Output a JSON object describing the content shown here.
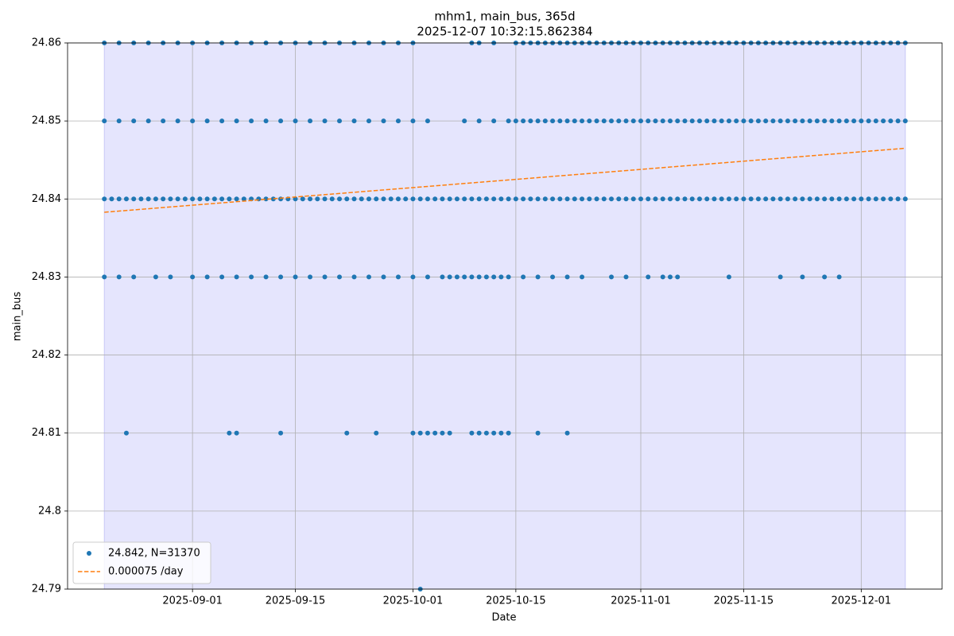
{
  "chart_data": {
    "type": "scatter",
    "title": "mhm1, main_bus, 365d",
    "subtitle": "2025-12-07 10:32:15.862384",
    "x_label": "Date",
    "y_label": "main_bus",
    "xlim": [
      "2025-08-15",
      "2025-12-12"
    ],
    "xticks": [
      "2025-09-01",
      "2025-09-15",
      "2025-10-01",
      "2025-10-15",
      "2025-11-01",
      "2025-11-15",
      "2025-12-01"
    ],
    "ylim": [
      24.79,
      24.86
    ],
    "yticks": [
      24.79,
      24.8,
      24.81,
      24.82,
      24.83,
      24.84,
      24.85,
      24.86
    ],
    "yticks_labels_note": null,
    "grid": true,
    "legend": "lower left",
    "span": {
      "range": [
        "2025-08-20",
        "2025-12-07"
      ],
      "color": "#e5e5fd",
      "edge": "#c9c9f5"
    },
    "series": [
      {
        "name": "24.842, N=31370",
        "kind": "points",
        "color": "#1f77b4",
        "x": [
          "2025-08-20",
          "2025-08-21",
          "2025-08-22",
          "2025-08-23",
          "2025-08-24",
          "2025-08-25",
          "2025-08-26",
          "2025-08-27",
          "2025-08-28",
          "2025-08-29",
          "2025-08-30",
          "2025-08-31",
          "2025-09-01",
          "2025-09-02",
          "2025-09-03",
          "2025-09-04",
          "2025-09-05",
          "2025-09-06",
          "2025-09-07",
          "2025-09-08",
          "2025-09-09",
          "2025-09-10",
          "2025-09-11",
          "2025-09-12",
          "2025-09-13",
          "2025-09-14",
          "2025-09-15",
          "2025-09-16",
          "2025-09-17",
          "2025-09-18",
          "2025-09-19",
          "2025-09-20",
          "2025-09-21",
          "2025-09-22",
          "2025-09-23",
          "2025-09-24",
          "2025-09-25",
          "2025-09-26",
          "2025-09-27",
          "2025-09-28",
          "2025-09-29",
          "2025-09-30",
          "2025-10-01",
          "2025-10-02",
          "2025-10-03",
          "2025-10-04",
          "2025-10-05",
          "2025-10-06",
          "2025-10-07",
          "2025-10-08",
          "2025-10-09",
          "2025-10-10",
          "2025-10-11",
          "2025-10-12",
          "2025-10-13",
          "2025-10-14",
          "2025-10-15",
          "2025-10-16",
          "2025-10-17",
          "2025-10-18",
          "2025-10-19",
          "2025-10-20",
          "2025-10-21",
          "2025-10-22",
          "2025-10-23",
          "2025-10-24",
          "2025-10-25",
          "2025-10-26",
          "2025-10-27",
          "2025-10-28",
          "2025-10-29",
          "2025-10-30",
          "2025-10-31",
          "2025-11-01",
          "2025-11-02",
          "2025-11-03",
          "2025-11-04",
          "2025-11-05",
          "2025-11-06",
          "2025-11-07",
          "2025-11-08",
          "2025-11-09",
          "2025-11-10",
          "2025-11-11",
          "2025-11-12",
          "2025-11-13",
          "2025-11-14",
          "2025-11-15",
          "2025-11-16",
          "2025-11-17",
          "2025-11-18",
          "2025-11-19",
          "2025-11-20",
          "2025-11-21",
          "2025-11-22",
          "2025-11-23",
          "2025-11-24",
          "2025-11-25",
          "2025-11-26",
          "2025-11-27",
          "2025-11-28",
          "2025-11-29",
          "2025-11-30",
          "2025-12-01",
          "2025-12-02",
          "2025-12-03",
          "2025-12-04",
          "2025-12-05",
          "2025-12-06",
          "2025-12-07",
          "2025-08-20",
          "2025-08-22",
          "2025-08-24",
          "2025-08-26",
          "2025-08-28",
          "2025-08-30",
          "2025-09-01",
          "2025-09-03",
          "2025-09-05",
          "2025-09-07",
          "2025-09-09",
          "2025-09-11",
          "2025-09-13",
          "2025-09-15",
          "2025-09-17",
          "2025-09-19",
          "2025-09-21",
          "2025-09-23",
          "2025-09-25",
          "2025-09-27",
          "2025-09-29",
          "2025-10-01",
          "2025-10-03",
          "2025-10-08",
          "2025-10-10",
          "2025-10-12",
          "2025-10-14",
          "2025-10-15",
          "2025-10-16",
          "2025-10-17",
          "2025-10-18",
          "2025-10-19",
          "2025-10-20",
          "2025-10-21",
          "2025-10-22",
          "2025-10-23",
          "2025-10-24",
          "2025-10-25",
          "2025-10-26",
          "2025-10-27",
          "2025-10-28",
          "2025-10-29",
          "2025-10-30",
          "2025-10-31",
          "2025-11-01",
          "2025-11-02",
          "2025-11-03",
          "2025-11-04",
          "2025-11-05",
          "2025-11-06",
          "2025-11-07",
          "2025-11-08",
          "2025-11-09",
          "2025-11-10",
          "2025-11-11",
          "2025-11-12",
          "2025-11-13",
          "2025-11-14",
          "2025-11-15",
          "2025-11-16",
          "2025-11-17",
          "2025-11-18",
          "2025-11-19",
          "2025-11-20",
          "2025-11-21",
          "2025-11-22",
          "2025-11-23",
          "2025-11-24",
          "2025-11-25",
          "2025-11-26",
          "2025-11-27",
          "2025-11-28",
          "2025-11-29",
          "2025-11-30",
          "2025-12-01",
          "2025-12-02",
          "2025-12-03",
          "2025-12-04",
          "2025-12-05",
          "2025-12-06",
          "2025-12-07",
          "2025-08-20",
          "2025-08-22",
          "2025-08-24",
          "2025-08-26",
          "2025-08-28",
          "2025-08-30",
          "2025-09-01",
          "2025-09-03",
          "2025-09-05",
          "2025-09-07",
          "2025-09-09",
          "2025-09-11",
          "2025-09-13",
          "2025-09-15",
          "2025-09-17",
          "2025-09-19",
          "2025-09-21",
          "2025-09-23",
          "2025-09-25",
          "2025-09-27",
          "2025-09-29",
          "2025-10-01",
          "2025-10-09",
          "2025-10-10",
          "2025-10-12",
          "2025-10-15",
          "2025-10-16",
          "2025-10-17",
          "2025-10-18",
          "2025-10-19",
          "2025-10-20",
          "2025-10-21",
          "2025-10-22",
          "2025-10-23",
          "2025-10-24",
          "2025-10-25",
          "2025-10-26",
          "2025-10-27",
          "2025-10-28",
          "2025-10-29",
          "2025-10-30",
          "2025-10-31",
          "2025-11-01",
          "2025-11-02",
          "2025-11-03",
          "2025-11-04",
          "2025-11-05",
          "2025-11-06",
          "2025-11-07",
          "2025-11-08",
          "2025-11-09",
          "2025-11-10",
          "2025-11-11",
          "2025-11-12",
          "2025-11-13",
          "2025-11-14",
          "2025-11-15",
          "2025-11-16",
          "2025-11-17",
          "2025-11-18",
          "2025-11-19",
          "2025-11-20",
          "2025-11-21",
          "2025-11-22",
          "2025-11-23",
          "2025-11-24",
          "2025-11-25",
          "2025-11-26",
          "2025-11-27",
          "2025-11-28",
          "2025-11-29",
          "2025-11-30",
          "2025-12-01",
          "2025-12-02",
          "2025-12-03",
          "2025-12-04",
          "2025-12-05",
          "2025-12-06",
          "2025-12-07",
          "2025-08-20",
          "2025-08-22",
          "2025-08-24",
          "2025-08-27",
          "2025-08-29",
          "2025-09-01",
          "2025-09-03",
          "2025-09-05",
          "2025-09-07",
          "2025-09-09",
          "2025-09-11",
          "2025-09-13",
          "2025-09-15",
          "2025-09-17",
          "2025-09-19",
          "2025-09-21",
          "2025-09-23",
          "2025-09-25",
          "2025-09-27",
          "2025-09-29",
          "2025-10-01",
          "2025-10-03",
          "2025-10-05",
          "2025-10-06",
          "2025-10-07",
          "2025-10-08",
          "2025-10-09",
          "2025-10-10",
          "2025-10-11",
          "2025-10-12",
          "2025-10-13",
          "2025-10-14",
          "2025-10-16",
          "2025-10-18",
          "2025-10-20",
          "2025-10-22",
          "2025-10-24",
          "2025-10-28",
          "2025-10-30",
          "2025-11-02",
          "2025-11-04",
          "2025-11-05",
          "2025-11-06",
          "2025-11-13",
          "2025-11-20",
          "2025-11-23",
          "2025-11-26",
          "2025-11-28",
          "2025-08-23",
          "2025-09-06",
          "2025-09-07",
          "2025-09-13",
          "2025-09-22",
          "2025-09-26",
          "2025-10-01",
          "2025-10-02",
          "2025-10-03",
          "2025-10-04",
          "2025-10-05",
          "2025-10-06",
          "2025-10-09",
          "2025-10-10",
          "2025-10-11",
          "2025-10-12",
          "2025-10-13",
          "2025-10-14",
          "2025-10-18",
          "2025-10-22",
          "2025-10-02"
        ],
        "values": [
          24.84,
          24.84,
          24.84,
          24.84,
          24.84,
          24.84,
          24.84,
          24.84,
          24.84,
          24.84,
          24.84,
          24.84,
          24.84,
          24.84,
          24.84,
          24.84,
          24.84,
          24.84,
          24.84,
          24.84,
          24.84,
          24.84,
          24.84,
          24.84,
          24.84,
          24.84,
          24.84,
          24.84,
          24.84,
          24.84,
          24.84,
          24.84,
          24.84,
          24.84,
          24.84,
          24.84,
          24.84,
          24.84,
          24.84,
          24.84,
          24.84,
          24.84,
          24.84,
          24.84,
          24.84,
          24.84,
          24.84,
          24.84,
          24.84,
          24.84,
          24.84,
          24.84,
          24.84,
          24.84,
          24.84,
          24.84,
          24.84,
          24.84,
          24.84,
          24.84,
          24.84,
          24.84,
          24.84,
          24.84,
          24.84,
          24.84,
          24.84,
          24.84,
          24.84,
          24.84,
          24.84,
          24.84,
          24.84,
          24.84,
          24.84,
          24.84,
          24.84,
          24.84,
          24.84,
          24.84,
          24.84,
          24.84,
          24.84,
          24.84,
          24.84,
          24.84,
          24.84,
          24.84,
          24.84,
          24.84,
          24.84,
          24.84,
          24.84,
          24.84,
          24.84,
          24.84,
          24.84,
          24.84,
          24.84,
          24.84,
          24.84,
          24.84,
          24.84,
          24.84,
          24.84,
          24.84,
          24.84,
          24.84,
          24.84,
          24.84,
          24.85,
          24.85,
          24.85,
          24.85,
          24.85,
          24.85,
          24.85,
          24.85,
          24.85,
          24.85,
          24.85,
          24.85,
          24.85,
          24.85,
          24.85,
          24.85,
          24.85,
          24.85,
          24.85,
          24.85,
          24.85,
          24.85,
          24.85,
          24.85,
          24.85,
          24.85,
          24.85,
          24.85,
          24.85,
          24.85,
          24.85,
          24.85,
          24.85,
          24.85,
          24.85,
          24.85,
          24.85,
          24.85,
          24.85,
          24.85,
          24.85,
          24.85,
          24.85,
          24.85,
          24.85,
          24.85,
          24.85,
          24.85,
          24.85,
          24.85,
          24.85,
          24.85,
          24.85,
          24.85,
          24.85,
          24.85,
          24.85,
          24.85,
          24.85,
          24.85,
          24.85,
          24.85,
          24.85,
          24.85,
          24.85,
          24.85,
          24.85,
          24.85,
          24.85,
          24.85,
          24.85,
          24.85,
          24.85,
          24.85,
          24.85,
          24.85,
          24.85,
          24.85,
          24.85,
          24.85,
          24.85,
          24.86,
          24.86,
          24.86,
          24.86,
          24.86,
          24.86,
          24.86,
          24.86,
          24.86,
          24.86,
          24.86,
          24.86,
          24.86,
          24.86,
          24.86,
          24.86,
          24.86,
          24.86,
          24.86,
          24.86,
          24.86,
          24.86,
          24.86,
          24.86,
          24.86,
          24.86,
          24.86,
          24.86,
          24.86,
          24.86,
          24.86,
          24.86,
          24.86,
          24.86,
          24.86,
          24.86,
          24.86,
          24.86,
          24.86,
          24.86,
          24.86,
          24.86,
          24.86,
          24.86,
          24.86,
          24.86,
          24.86,
          24.86,
          24.86,
          24.86,
          24.86,
          24.86,
          24.86,
          24.86,
          24.86,
          24.86,
          24.86,
          24.86,
          24.86,
          24.86,
          24.86,
          24.86,
          24.86,
          24.86,
          24.86,
          24.86,
          24.86,
          24.86,
          24.86,
          24.86,
          24.86,
          24.86,
          24.86,
          24.86,
          24.86,
          24.86,
          24.86,
          24.86,
          24.86,
          24.83,
          24.83,
          24.83,
          24.83,
          24.83,
          24.83,
          24.83,
          24.83,
          24.83,
          24.83,
          24.83,
          24.83,
          24.83,
          24.83,
          24.83,
          24.83,
          24.83,
          24.83,
          24.83,
          24.83,
          24.83,
          24.83,
          24.83,
          24.83,
          24.83,
          24.83,
          24.83,
          24.83,
          24.83,
          24.83,
          24.83,
          24.83,
          24.83,
          24.83,
          24.83,
          24.83,
          24.83,
          24.83,
          24.83,
          24.83,
          24.83,
          24.83,
          24.83,
          24.83,
          24.83,
          24.83,
          24.83,
          24.83,
          24.81,
          24.81,
          24.81,
          24.81,
          24.81,
          24.81,
          24.81,
          24.81,
          24.81,
          24.81,
          24.81,
          24.81,
          24.81,
          24.81,
          24.81,
          24.81,
          24.81,
          24.81,
          24.81,
          24.81,
          24.79
        ]
      },
      {
        "name": "0.000075 /day",
        "kind": "dashed-line",
        "color": "#ff7f0e",
        "x": [
          "2025-08-20",
          "2025-12-07"
        ],
        "values": [
          24.8383,
          24.8465
        ]
      }
    ]
  }
}
